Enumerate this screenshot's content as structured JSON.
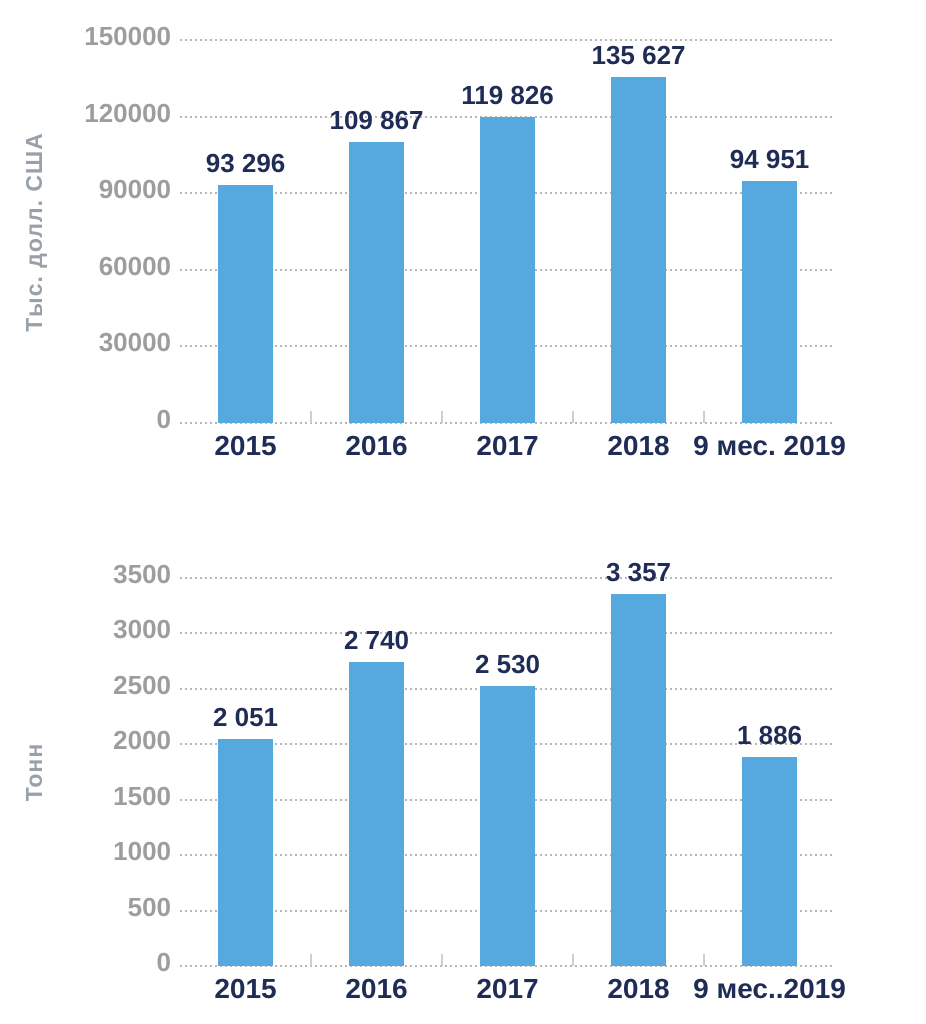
{
  "colors": {
    "bar": "#55a9de",
    "value_label": "#1f2c55",
    "x_tick_label": "#1f2c55",
    "y_tick_label": "#9d9d9d",
    "axis_title": "#98a0a9",
    "gridline": "#b6b6b6",
    "background": "#ffffff"
  },
  "chart_data": [
    {
      "type": "bar",
      "title": "",
      "ylabel": "Тыс. долл. США",
      "xlabel": "",
      "categories": [
        "2015",
        "2016",
        "2017",
        "2018",
        "9 мес. 2019"
      ],
      "values": [
        93296,
        109867,
        119826,
        135627,
        94951
      ],
      "value_labels": [
        "93 296",
        "109 867",
        "119 826",
        "135 627",
        "94 951"
      ],
      "yticks": [
        0,
        30000,
        60000,
        90000,
        120000,
        150000
      ],
      "ylim": [
        0,
        150000
      ],
      "grid": "horizontal-dotted",
      "legend": "none",
      "bar_color": "#55a9de"
    },
    {
      "type": "bar",
      "title": "",
      "ylabel": "Тонн",
      "xlabel": "",
      "categories": [
        "2015",
        "2016",
        "2017",
        "2018",
        "9 мес..2019"
      ],
      "values": [
        2051,
        2740,
        2530,
        3357,
        1886
      ],
      "value_labels": [
        "2 051",
        "2 740",
        "2 530",
        "3 357",
        "1 886"
      ],
      "yticks": [
        0,
        500,
        1000,
        1500,
        2000,
        2500,
        3000,
        3500
      ],
      "ylim": [
        0,
        3500
      ],
      "grid": "horizontal-dotted",
      "legend": "none",
      "bar_color": "#55a9de"
    }
  ]
}
